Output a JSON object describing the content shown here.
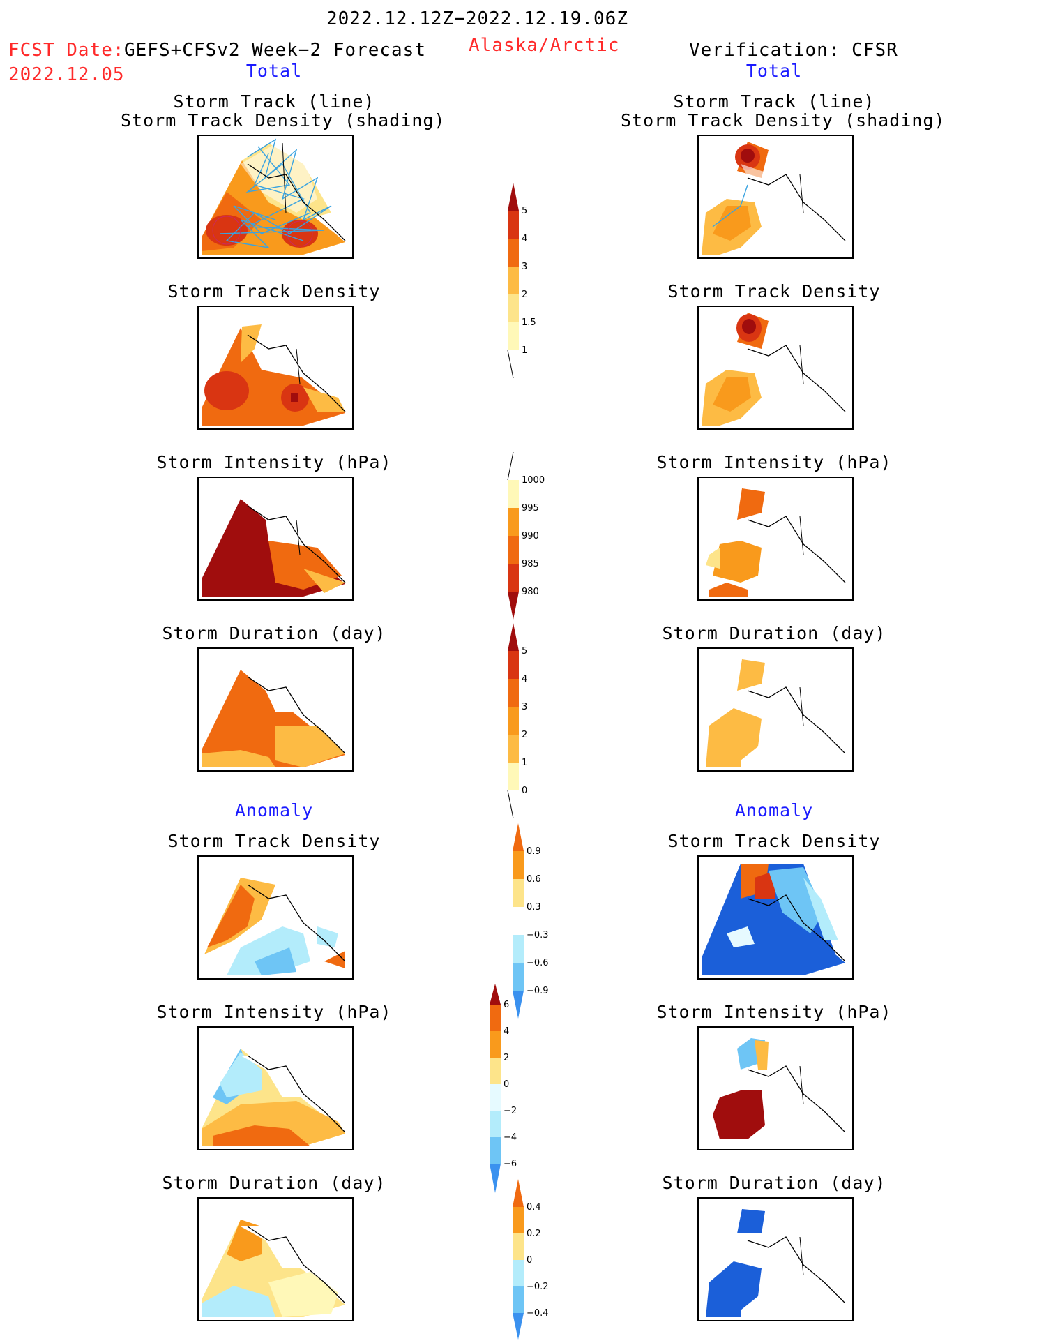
{
  "header": {
    "period": "2022.12.12Z−2022.12.19.06Z",
    "fcst_label": "FCST Date:",
    "fcst_model": "GEFS+CFSv2 Week−2 Forecast",
    "fcst_date": "2022.12.05",
    "region": "Alaska/Arctic",
    "verification": "Verification: CFSR"
  },
  "sections": {
    "total_left": "Total",
    "total_right": "Total",
    "anomaly_left": "Anomaly",
    "anomaly_right": "Anomaly"
  },
  "panel_titles": {
    "track_line": "Storm Track (line)",
    "track_shading": "Storm Track Density (shading)",
    "density": "Storm Track Density",
    "intensity": "Storm Intensity (hPa)",
    "duration": "Storm Duration (day)"
  },
  "colorbars": {
    "density_total": [
      "1",
      "1.5",
      "2",
      "3",
      "4",
      "5"
    ],
    "intensity_total": [
      "1000",
      "995",
      "990",
      "985",
      "980"
    ],
    "duration_total": [
      "0",
      "1",
      "2",
      "3",
      "4",
      "5"
    ],
    "density_anom": [
      "0.9",
      "0.6",
      "0.3",
      "−0.3",
      "−0.6",
      "−0.9"
    ],
    "intensity_anom": [
      "6",
      "4",
      "2",
      "0",
      "−2",
      "−4",
      "−6"
    ],
    "duration_anom": [
      "0.4",
      "0.2",
      "0",
      "−0.2",
      "−0.4"
    ]
  },
  "colors": {
    "warm": [
      "#fff8b8",
      "#fde48a",
      "#fdbb44",
      "#f99a1c",
      "#f06a10",
      "#d93512",
      "#a00d0d"
    ],
    "cool": [
      "#e6faff",
      "#b3ecfb",
      "#6ec5f5",
      "#3a91ef",
      "#1b5fd9",
      "#0c3fb0"
    ],
    "track_line": "#3aa3e0",
    "title_red": "#ff2a2a",
    "title_blue": "#1a1aff"
  }
}
